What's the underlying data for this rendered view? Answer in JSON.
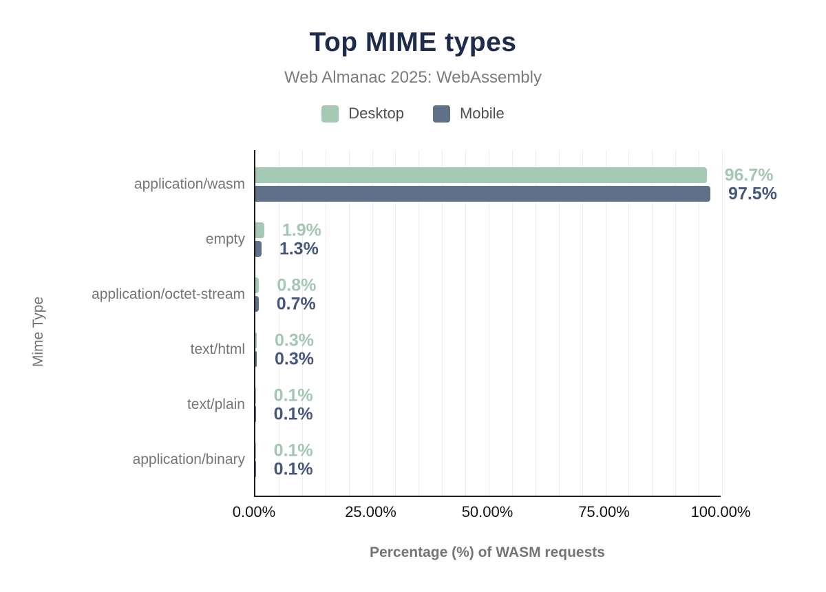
{
  "header": {
    "title": "Top MIME types",
    "subtitle": "Web Almanac 2025: WebAssembly"
  },
  "legend": [
    {
      "name": "Desktop",
      "color": "#a4c9b4"
    },
    {
      "name": "Mobile",
      "color": "#5f7189"
    }
  ],
  "colors": {
    "title": "#1e2b4a",
    "subtitle_text": "#7b7b7b",
    "category_text": "#757575",
    "tick_text": "#111111",
    "axis_line": "#1c1c1c",
    "gridline": "#ededed",
    "desktop_bar": "#a4c9b4",
    "mobile_bar": "#5f7189",
    "desktop_value_label": "#a2c8b3",
    "mobile_value_label": "#46567a"
  },
  "chart_data": {
    "type": "bar",
    "orientation": "horizontal",
    "title": "Top MIME types",
    "subtitle": "Web Almanac 2025: WebAssembly",
    "xlabel": "Percentage (%) of WASM requests",
    "ylabel": "Mime Type",
    "xlim": [
      0,
      100
    ],
    "grid": "vertical, minor every 5%, light gray",
    "legend_position": "top center",
    "categories": [
      "application/wasm",
      "empty",
      "application/octet-stream",
      "text/html",
      "text/plain",
      "application/binary"
    ],
    "series": [
      {
        "name": "Desktop",
        "color": "#a4c9b4",
        "label_color": "#a2c8b3",
        "values": [
          96.7,
          1.9,
          0.8,
          0.3,
          0.1,
          0.1
        ],
        "labels": [
          "96.7%",
          "1.9%",
          "0.8%",
          "0.3%",
          "0.1%",
          "0.1%"
        ]
      },
      {
        "name": "Mobile",
        "color": "#5f7189",
        "label_color": "#46567a",
        "values": [
          97.5,
          1.3,
          0.7,
          0.3,
          0.1,
          0.1
        ],
        "labels": [
          "97.5%",
          "1.3%",
          "0.7%",
          "0.3%",
          "0.1%",
          "0.1%"
        ]
      }
    ],
    "x_ticks": [
      {
        "label": "0.00%",
        "value": 0
      },
      {
        "label": "25.00%",
        "value": 25
      },
      {
        "label": "50.00%",
        "value": 50
      },
      {
        "label": "75.00%",
        "value": 75
      },
      {
        "label": "100.00%",
        "value": 100
      }
    ]
  }
}
